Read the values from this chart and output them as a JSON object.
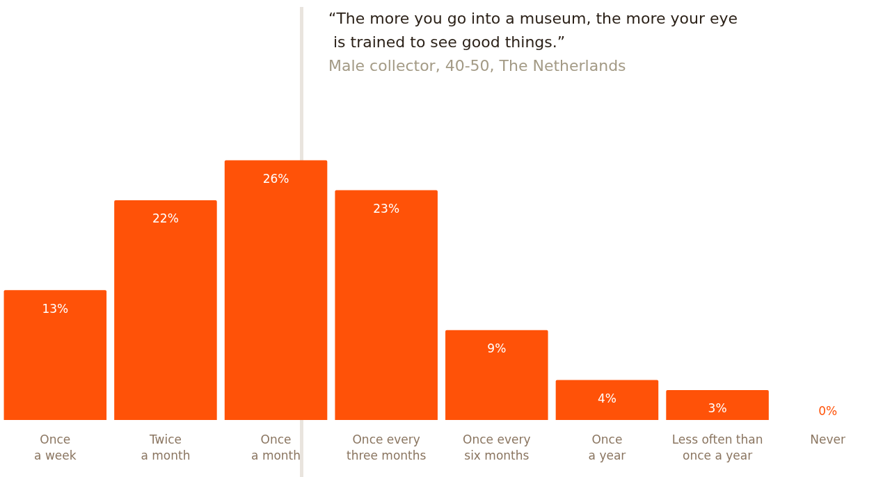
{
  "chart_data": {
    "type": "bar",
    "categories": [
      "Once\na week",
      "Twice\na month",
      "Once\na month",
      "Once every\nthree months",
      "Once every\nsix months",
      "Once\na year",
      "Less often than\nonce a year",
      "Never"
    ],
    "values": [
      13,
      22,
      26,
      23,
      9,
      4,
      3,
      0
    ],
    "value_labels": [
      "13%",
      "22%",
      "26%",
      "23%",
      "9%",
      "4%",
      "3%",
      "0%"
    ],
    "color": "#ff5208",
    "grid": false,
    "legend": false,
    "tick_labels": "x",
    "annotations": [
      "“The more you go into a museum, the more your eye\n is trained to see good things.”",
      "Male collector, 40-50, The Netherlands"
    ]
  }
}
